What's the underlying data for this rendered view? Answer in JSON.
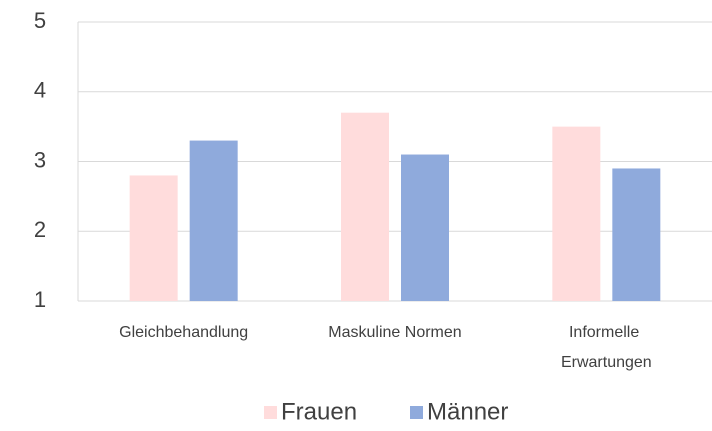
{
  "chart_data": {
    "type": "bar",
    "categories": [
      "Gleichbehandlung",
      "Maskuline Normen",
      "Informelle Erwartungen"
    ],
    "series": [
      {
        "name": "Frauen",
        "color": "#ffdcdc",
        "values": [
          2.8,
          3.7,
          3.5
        ]
      },
      {
        "name": "Männer",
        "color": "#8faadc",
        "values": [
          3.3,
          3.1,
          2.9
        ]
      }
    ],
    "ylim": [
      1,
      5
    ],
    "yticks": [
      1,
      2,
      3,
      4,
      5
    ],
    "grid": true,
    "legend": "bottom"
  }
}
